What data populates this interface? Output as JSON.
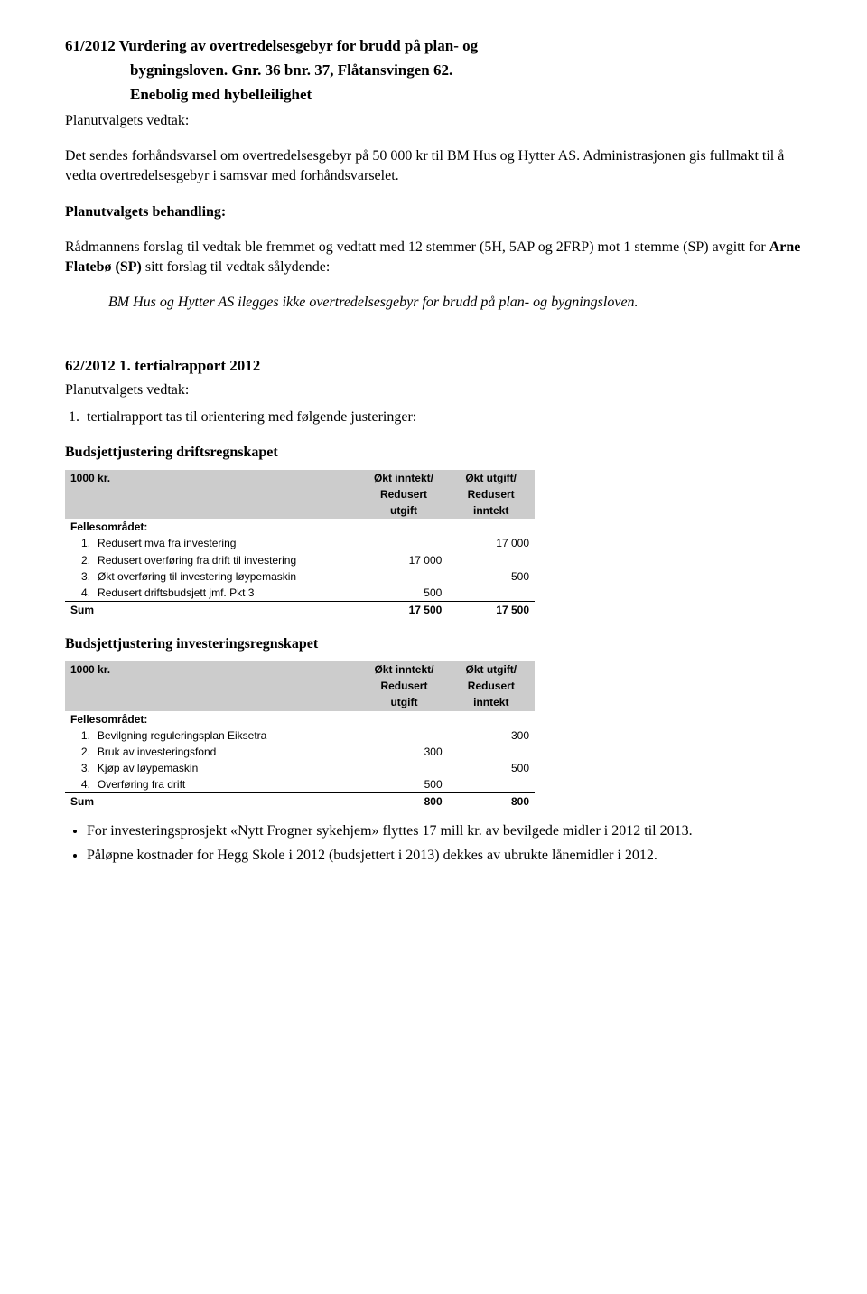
{
  "case61": {
    "title_line1": "61/2012 Vurdering av overtredelsesgebyr for brudd på plan- og",
    "title_line2": "bygningsloven. Gnr. 36 bnr. 37, Flåtansvingen 62.",
    "title_line3": "Enebolig med hybelleilighet",
    "vedtak_label": "Planutvalgets vedtak:",
    "vedtak_p1": "Det sendes forhåndsvarsel om overtredelsesgebyr på 50 000 kr til BM Hus og Hytter AS. Administrasjonen gis fullmakt til å vedta overtredelsesgebyr i samsvar med forhåndsvarselet.",
    "behandling_label": "Planutvalgets behandling:",
    "behandling_p1_a": "Rådmannens forslag til vedtak ble fremmet og vedtatt med 12 stemmer (5H, 5AP og 2FRP) mot 1 stemme (SP) avgitt for ",
    "behandling_p1_bold": "Arne Flatebø (SP)",
    "behandling_p1_c": " sitt forslag til vedtak sålydende:",
    "italic_p": "BM Hus og Hytter AS ilegges ikke overtredelsesgebyr for brudd på plan- og bygningsloven."
  },
  "case62": {
    "title": "62/2012 1. tertialrapport 2012",
    "vedtak_label": "Planutvalgets vedtak:",
    "ol_item1": "tertialrapport tas til orientering med følgende justeringer:",
    "drift_heading": "Budsjettjustering driftsregnskapet",
    "invest_heading": "Budsjettjustering investeringsregnskapet"
  },
  "table_common": {
    "krlabel": "1000 kr.",
    "col_inc_hdr1": "Økt inntekt/",
    "col_inc_hdr2": "Redusert",
    "col_inc_hdr3": "utgift",
    "col_out_hdr1": "Økt utgift/",
    "col_out_hdr2": "Redusert",
    "col_out_hdr3": "inntekt",
    "felles_label": "Fellesområdet:",
    "sum_label": "Sum"
  },
  "drift_table": {
    "rows": [
      {
        "n": "1.",
        "label": "Redusert mva fra investering",
        "inc": "",
        "out": "17 000"
      },
      {
        "n": "2.",
        "label": "Redusert overføring fra drift til investering",
        "inc": "17 000",
        "out": ""
      },
      {
        "n": "3.",
        "label": "Økt overføring til investering løypemaskin",
        "inc": "",
        "out": "500"
      },
      {
        "n": "4.",
        "label": "Redusert driftsbudsjett jmf. Pkt 3",
        "inc": "500",
        "out": ""
      }
    ],
    "sum_inc": "17 500",
    "sum_out": "17 500"
  },
  "invest_table": {
    "rows": [
      {
        "n": "1.",
        "label": "Bevilgning reguleringsplan Eiksetra",
        "inc": "",
        "out": "300"
      },
      {
        "n": "2.",
        "label": "Bruk av investeringsfond",
        "inc": "300",
        "out": ""
      },
      {
        "n": "3.",
        "label": "Kjøp av løypemaskin",
        "inc": "",
        "out": "500"
      },
      {
        "n": "4.",
        "label": "Overføring fra drift",
        "inc": "500",
        "out": ""
      }
    ],
    "sum_inc": "800",
    "sum_out": "800"
  },
  "bullets": {
    "b1": "For investeringsprosjekt «Nytt Frogner sykehjem» flyttes 17 mill kr. av bevilgede midler i 2012 til 2013.",
    "b2": "Påløpne kostnader for Hegg Skole i 2012 (budsjettert i 2013) dekkes av ubrukte lånemidler i 2012."
  },
  "style": {
    "bg": "#ffffff",
    "text": "#000000",
    "table_header_bg": "#cccccc",
    "table_font": "Arial",
    "body_font": "Times New Roman"
  }
}
